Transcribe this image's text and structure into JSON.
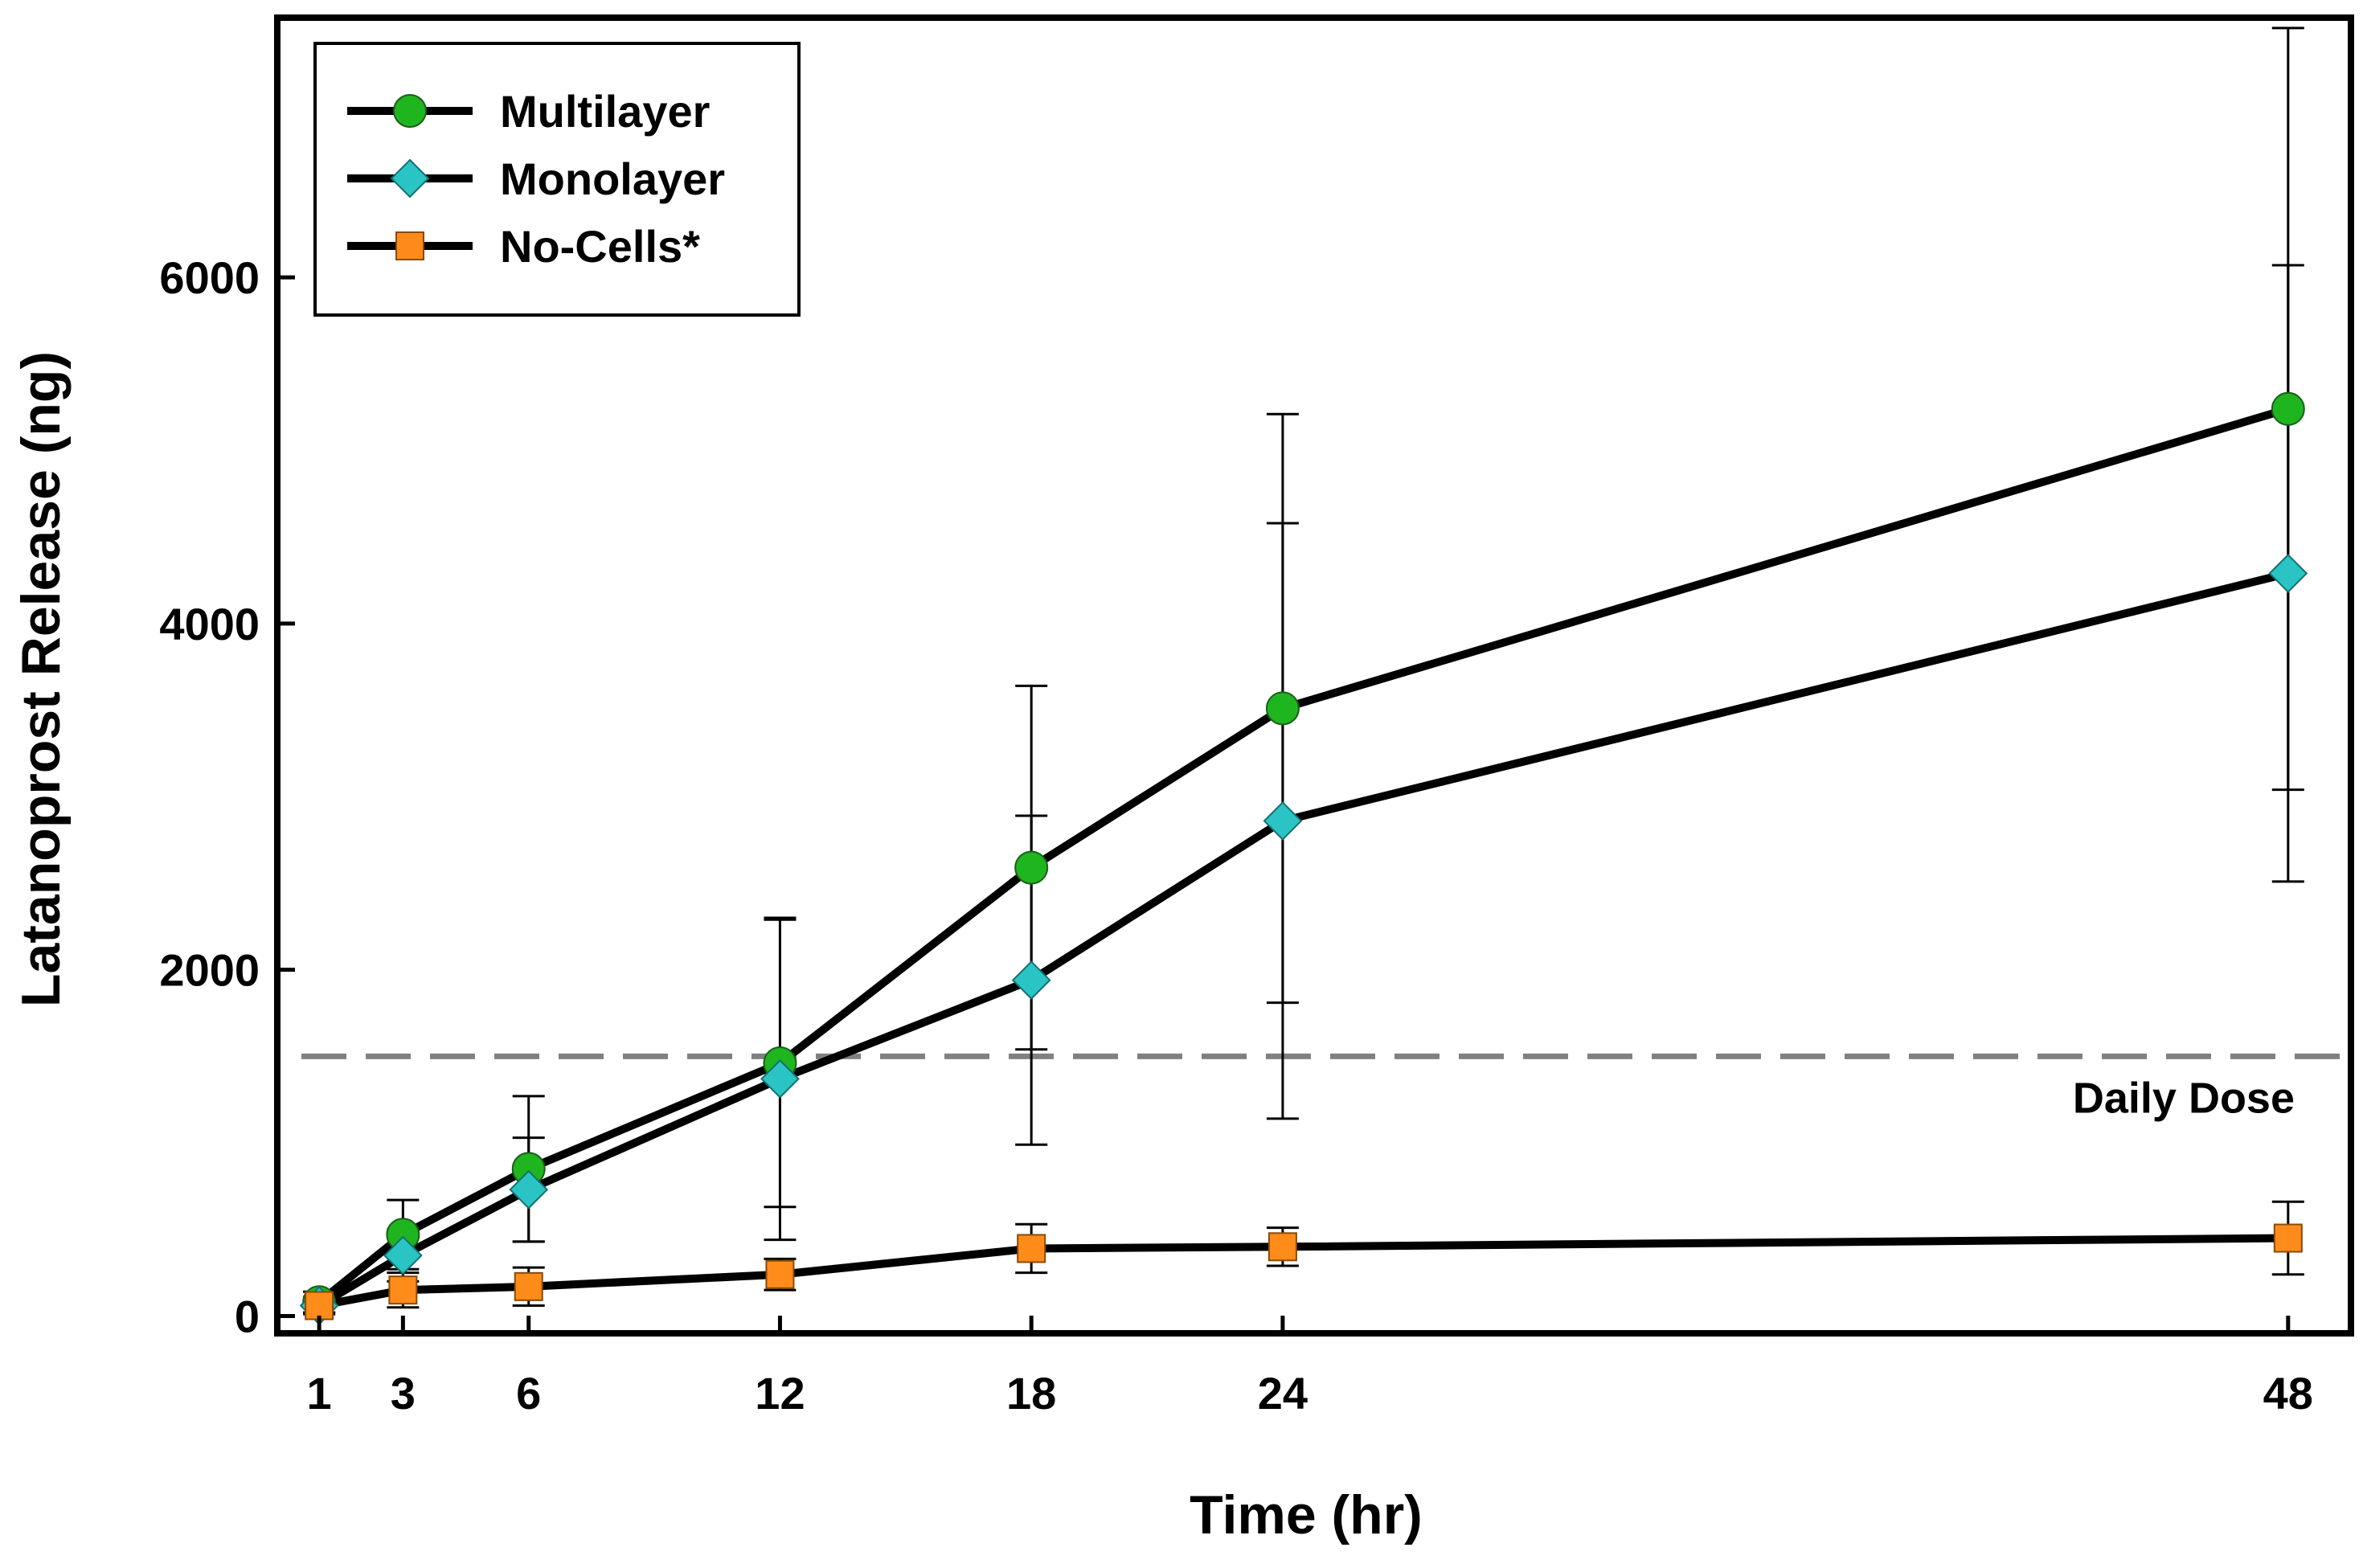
{
  "chart_data": {
    "type": "line",
    "xlabel": "Time (hr)",
    "ylabel": "Latanoprost Release (ng)",
    "x": [
      1,
      3,
      6,
      12,
      18,
      24,
      48
    ],
    "x_tick_labels": [
      "1",
      "3",
      "6",
      "12",
      "18",
      "24",
      "48"
    ],
    "xlim": [
      0,
      49.5
    ],
    "ylim": [
      -100,
      7500
    ],
    "y_ticks": [
      0,
      2000,
      4000,
      6000
    ],
    "y_tick_labels": [
      "0",
      "2000",
      "4000",
      "6000"
    ],
    "grid": false,
    "legend_position": "top-left",
    "series": [
      {
        "name": "Multilayer",
        "marker": "circle",
        "color": "#1fb51f",
        "values": [
          80,
          470,
          850,
          1460,
          2590,
          3510,
          5240
        ],
        "error": [
          60,
          200,
          420,
          830,
          1050,
          1700,
          2200
        ]
      },
      {
        "name": "Monolayer",
        "marker": "diamond",
        "color": "#2bc4c4",
        "values": [
          60,
          350,
          730,
          1370,
          1940,
          2860,
          4290
        ],
        "error": [
          50,
          150,
          300,
          930,
          950,
          1720,
          1780
        ]
      },
      {
        "name": "No-Cells*",
        "marker": "square",
        "color": "#ff8c1a",
        "values": [
          60,
          150,
          170,
          240,
          390,
          400,
          450
        ],
        "error": [
          40,
          100,
          110,
          90,
          140,
          110,
          210
        ]
      }
    ],
    "reference_line": {
      "y": 1500,
      "label": "Daily Dose",
      "color": "#808080",
      "style": "dashed"
    }
  }
}
